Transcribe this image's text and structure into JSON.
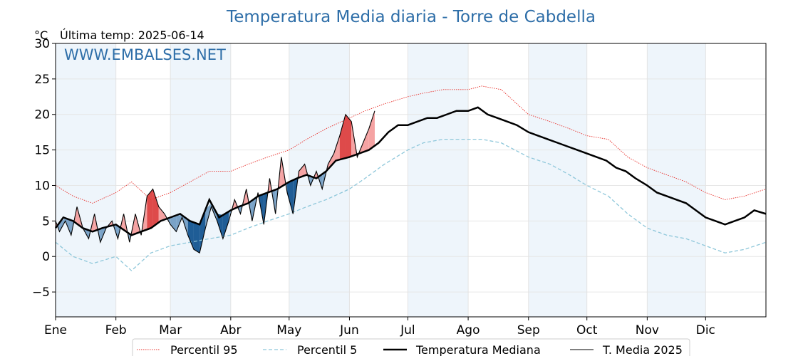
{
  "chart_data": {
    "type": "line",
    "title": "Temperatura Media diaria - Torre de Cabdella",
    "unit_label": "°C",
    "subtitle": "Última temp: 2025-06-14",
    "watermark": "WWW.EMBALSES.NET",
    "ylim": [
      -8.5,
      30
    ],
    "yticks": [
      -5,
      0,
      5,
      10,
      15,
      20,
      25,
      30
    ],
    "ytick_labels": [
      "−5",
      "0",
      "5",
      "10",
      "15",
      "20",
      "25",
      "30"
    ],
    "x_range_days": [
      1,
      366
    ],
    "months": [
      {
        "label": "Ene",
        "start_day": 1
      },
      {
        "label": "Feb",
        "start_day": 32
      },
      {
        "label": "Mar",
        "start_day": 60
      },
      {
        "label": "Abr",
        "start_day": 91
      },
      {
        "label": "May",
        "start_day": 121
      },
      {
        "label": "Jun",
        "start_day": 152
      },
      {
        "label": "Jul",
        "start_day": 182
      },
      {
        "label": "Ago",
        "start_day": 213
      },
      {
        "label": "Sep",
        "start_day": 244
      },
      {
        "label": "Oct",
        "start_day": 274
      },
      {
        "label": "Nov",
        "start_day": 305
      },
      {
        "label": "Dic",
        "start_day": 335
      }
    ],
    "grid": true,
    "legend_position": "bottom",
    "colors": {
      "p95": "#e8302b",
      "p5": "#8ec7da",
      "median": "#000000",
      "current": "#000000",
      "above_fill": "#f5a3a3",
      "above_fill_strong": "#de4a4a",
      "below_fill": "#7aa3c8",
      "below_fill_strong": "#1f5d96",
      "month_band": "#eef5fb",
      "title": "#2e6ea8"
    },
    "series": [
      {
        "name": "Percentil 95",
        "style": "dotted",
        "x": [
          1,
          10,
          20,
          32,
          40,
          50,
          60,
          70,
          80,
          91,
          100,
          110,
          121,
          130,
          140,
          152,
          160,
          170,
          182,
          190,
          200,
          213,
          220,
          230,
          244,
          255,
          265,
          274,
          285,
          295,
          305,
          315,
          325,
          335,
          345,
          355,
          366
        ],
        "values": [
          10,
          8.5,
          7.5,
          9,
          10.5,
          8,
          9,
          10.5,
          12,
          12,
          13,
          14,
          15,
          16.5,
          18,
          19.5,
          20.5,
          21.5,
          22.5,
          23,
          23.5,
          23.5,
          24,
          23.5,
          20,
          19,
          18,
          17,
          16.5,
          14,
          12.5,
          11.5,
          10.5,
          9,
          8,
          8.5,
          9.5
        ]
      },
      {
        "name": "Percentil 5",
        "style": "dashed",
        "x": [
          1,
          10,
          20,
          32,
          40,
          50,
          60,
          70,
          80,
          91,
          100,
          110,
          121,
          130,
          140,
          152,
          160,
          170,
          182,
          190,
          200,
          213,
          220,
          230,
          244,
          255,
          265,
          274,
          285,
          295,
          305,
          315,
          325,
          335,
          345,
          355,
          366
        ],
        "values": [
          2,
          0,
          -1,
          0,
          -2,
          0.5,
          1.5,
          2,
          2.5,
          3,
          4,
          5,
          6,
          7,
          8,
          9.5,
          11,
          13,
          15,
          16,
          16.5,
          16.5,
          16.5,
          16,
          14,
          13,
          11.5,
          10,
          8.5,
          6,
          4,
          3,
          2.5,
          1.5,
          0.5,
          1,
          2
        ]
      },
      {
        "name": "Temperatura Mediana",
        "style": "solid-thick",
        "x": [
          1,
          5,
          10,
          15,
          20,
          25,
          32,
          40,
          45,
          50,
          55,
          60,
          65,
          70,
          75,
          80,
          85,
          91,
          95,
          100,
          105,
          110,
          115,
          121,
          125,
          130,
          135,
          140,
          145,
          152,
          157,
          162,
          167,
          172,
          177,
          182,
          187,
          192,
          197,
          202,
          207,
          213,
          218,
          223,
          228,
          233,
          238,
          244,
          249,
          254,
          259,
          264,
          269,
          274,
          279,
          284,
          289,
          294,
          299,
          305,
          310,
          315,
          320,
          325,
          330,
          335,
          340,
          345,
          350,
          355,
          360,
          366
        ],
        "values": [
          4,
          5.5,
          5,
          4,
          3.5,
          4,
          4.5,
          3,
          3.5,
          4,
          5,
          5.5,
          6,
          5,
          4.5,
          8,
          5.5,
          6.5,
          7,
          7.5,
          8.5,
          9,
          9.5,
          10.5,
          11,
          11.5,
          11,
          12,
          13.5,
          14,
          14.5,
          15,
          16,
          17.5,
          18.5,
          18.5,
          19,
          19.5,
          19.5,
          20,
          20.5,
          20.5,
          21,
          20,
          19.5,
          19,
          18.5,
          17.5,
          17,
          16.5,
          16,
          15.5,
          15,
          14.5,
          14,
          13.5,
          12.5,
          12,
          11,
          10,
          9,
          8.5,
          8,
          7.5,
          6.5,
          5.5,
          5,
          4.5,
          5,
          5.5,
          6.5,
          6
        ]
      },
      {
        "name": "T. Media 2025",
        "style": "solid-thin",
        "x": [
          1,
          3,
          6,
          9,
          12,
          15,
          18,
          21,
          24,
          27,
          30,
          33,
          36,
          39,
          42,
          45,
          48,
          51,
          54,
          57,
          60,
          63,
          66,
          69,
          72,
          75,
          78,
          81,
          84,
          87,
          90,
          93,
          96,
          99,
          102,
          105,
          108,
          111,
          114,
          117,
          120,
          123,
          126,
          129,
          132,
          135,
          138,
          141,
          144,
          147,
          150,
          153,
          156,
          159,
          162,
          165
        ],
        "values": [
          5,
          3.5,
          5,
          3,
          7,
          4,
          2.5,
          6,
          2,
          4,
          5,
          2.5,
          6,
          2,
          6,
          3,
          8.5,
          9.5,
          7,
          6,
          4.5,
          3.5,
          5.5,
          3,
          1,
          0.5,
          4,
          7,
          5,
          2.5,
          5,
          8,
          6,
          9.5,
          5,
          9,
          4.5,
          11,
          6,
          14,
          9,
          6,
          12,
          13,
          10,
          12,
          9.5,
          13,
          14.5,
          17,
          20,
          19,
          14,
          16,
          18,
          20.5
        ]
      }
    ]
  }
}
